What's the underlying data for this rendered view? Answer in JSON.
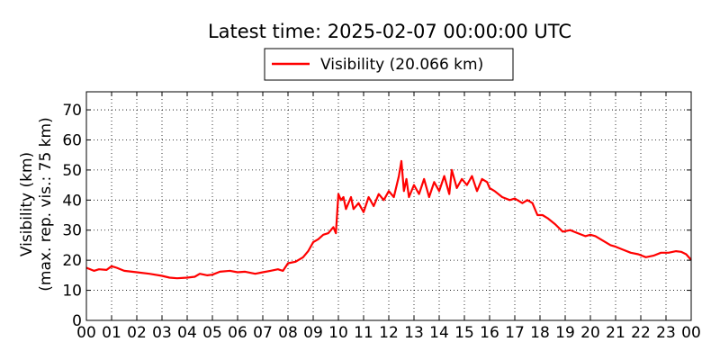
{
  "chart_data": {
    "type": "line",
    "title": "Latest time: 2025-02-07 00:00:00 UTC",
    "ylabel_line1": "Visibility (km)",
    "ylabel_line2": "(max. rep. vis.: 75 km)",
    "xlim": [
      0,
      24
    ],
    "ylim": [
      0,
      76
    ],
    "yticks": [
      0,
      10,
      20,
      30,
      40,
      50,
      60,
      70
    ],
    "xticks": [
      0,
      1,
      2,
      3,
      4,
      5,
      6,
      7,
      8,
      9,
      10,
      11,
      12,
      13,
      14,
      15,
      16,
      17,
      18,
      19,
      20,
      21,
      22,
      23,
      24
    ],
    "xtick_labels": [
      "00",
      "01",
      "02",
      "03",
      "04",
      "05",
      "06",
      "07",
      "08",
      "09",
      "10",
      "11",
      "12",
      "13",
      "14",
      "15",
      "16",
      "17",
      "18",
      "19",
      "20",
      "21",
      "22",
      "23",
      "00"
    ],
    "grid": true,
    "legend_position": "top-center",
    "series": [
      {
        "name": "Visibility (20.066 km)",
        "color": "#ff0000",
        "x": [
          0,
          0.3,
          0.5,
          0.8,
          1.0,
          1.2,
          1.5,
          2.0,
          2.5,
          3.0,
          3.3,
          3.6,
          4.0,
          4.3,
          4.5,
          4.8,
          5.0,
          5.3,
          5.7,
          6.0,
          6.3,
          6.7,
          7.0,
          7.3,
          7.6,
          7.8,
          8.0,
          8.3,
          8.6,
          8.8,
          9.0,
          9.2,
          9.4,
          9.6,
          9.8,
          9.9,
          10.0,
          10.1,
          10.2,
          10.3,
          10.5,
          10.6,
          10.8,
          11.0,
          11.2,
          11.4,
          11.6,
          11.8,
          12.0,
          12.2,
          12.4,
          12.5,
          12.6,
          12.7,
          12.8,
          13.0,
          13.2,
          13.4,
          13.6,
          13.8,
          14.0,
          14.2,
          14.4,
          14.5,
          14.7,
          14.9,
          15.1,
          15.3,
          15.5,
          15.7,
          15.9,
          16.0,
          16.2,
          16.5,
          16.8,
          17.0,
          17.3,
          17.5,
          17.7,
          17.9,
          18.1,
          18.3,
          18.6,
          18.9,
          19.2,
          19.5,
          19.8,
          20.0,
          20.2,
          20.5,
          20.8,
          21.0,
          21.3,
          21.6,
          21.9,
          22.2,
          22.5,
          22.8,
          23.1,
          23.4,
          23.6,
          23.8,
          24.0
        ],
        "y": [
          17.5,
          16.5,
          17,
          16.8,
          18,
          17.5,
          16.5,
          16,
          15.5,
          14.8,
          14.2,
          14,
          14.2,
          14.5,
          15.5,
          15,
          15.2,
          16.2,
          16.5,
          16,
          16.2,
          15.5,
          16,
          16.5,
          17,
          16.5,
          19,
          19.5,
          21,
          23,
          26,
          27,
          28.5,
          29,
          31,
          29,
          42,
          40,
          41,
          37,
          41,
          37,
          39,
          36,
          41,
          38,
          42,
          40,
          43,
          41,
          48,
          53,
          43,
          47,
          41,
          45,
          42,
          47,
          41,
          46,
          43,
          48,
          42,
          50,
          44,
          47,
          45,
          48,
          43,
          47,
          46,
          44,
          43,
          41,
          40,
          40.5,
          39,
          40,
          39,
          35,
          35,
          34,
          32,
          29.5,
          30,
          29,
          28,
          28.5,
          28,
          26.5,
          25,
          24.5,
          23.5,
          22.5,
          22,
          21,
          21.5,
          22.5,
          22.5,
          23,
          22.8,
          22,
          20.066
        ]
      }
    ]
  }
}
